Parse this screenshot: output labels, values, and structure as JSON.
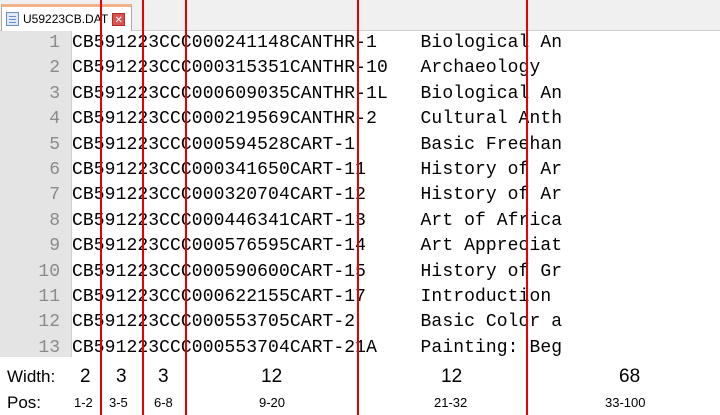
{
  "tab": {
    "label": "U59223CB.DAT",
    "icon": "document-icon",
    "close_icon": "close-icon"
  },
  "lines": [
    {
      "n": "1",
      "text": "CB591223CCC000241148CANTHR-1    Biological An"
    },
    {
      "n": "2",
      "text": "CB591223CCC000315351CANTHR-10   Archaeology"
    },
    {
      "n": "3",
      "text": "CB591223CCC000609035CANTHR-1L   Biological An"
    },
    {
      "n": "4",
      "text": "CB591223CCC000219569CANTHR-2    Cultural Anth"
    },
    {
      "n": "5",
      "text": "CB591223CCC000594528CART-1      Basic Freehan"
    },
    {
      "n": "6",
      "text": "CB591223CCC000341650CART-11     History of Ar"
    },
    {
      "n": "7",
      "text": "CB591223CCC000320704CART-12     History of Ar"
    },
    {
      "n": "8",
      "text": "CB591223CCC000446341CART-13     Art of Africa"
    },
    {
      "n": "9",
      "text": "CB591223CCC000576595CART-14     Art Appreciat"
    },
    {
      "n": "10",
      "text": "CB591223CCC000590600CART-15     History of Gr"
    },
    {
      "n": "11",
      "text": "CB591223CCC000622155CART-17     Introduction"
    },
    {
      "n": "12",
      "text": "CB591223CCC000553705CART-2      Basic Color a"
    },
    {
      "n": "13",
      "text": "CB591223CCC000553704CART-21A    Painting: Beg"
    }
  ],
  "legend": {
    "width_label": "Width:",
    "pos_label": "Pos:",
    "widths": [
      "2",
      "3",
      "3",
      "12",
      "12",
      "68"
    ],
    "positions": [
      "1-2",
      "3-5",
      "6-8",
      "9-20",
      "21-32",
      "33-100"
    ]
  },
  "colors": {
    "divider": "#e60000",
    "gutter": "#e4e4e4",
    "line_number": "#8a8a8a",
    "tab_accent": "#f4b183"
  }
}
